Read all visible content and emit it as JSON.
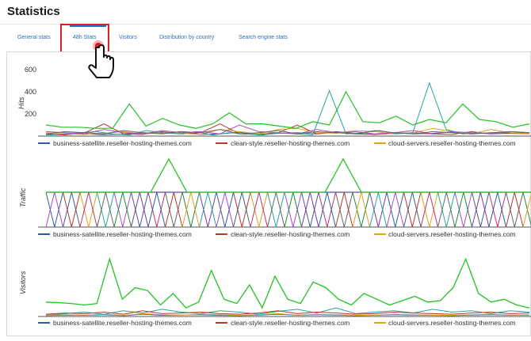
{
  "page": {
    "title": "Statistics"
  },
  "tabs": [
    {
      "label": "General stats",
      "active": false
    },
    {
      "label": "48h Stats",
      "active": true
    },
    {
      "label": "Visitors",
      "active": false
    },
    {
      "label": "Distribution by country",
      "active": false
    },
    {
      "label": "Search engine stats",
      "active": false
    }
  ],
  "legend": [
    {
      "name": "business-satellite.reseller-hosting-themes.com",
      "color": "#2f5f9e"
    },
    {
      "name": "clean-style.reseller-hosting-themes.com",
      "color": "#b53a2a"
    },
    {
      "name": "cloud-servers.reseller-hosting-themes.com",
      "color": "#e3a21a"
    }
  ],
  "icons": {
    "cursor": "hand-pointer-icon"
  },
  "chart_data": [
    {
      "type": "line",
      "ylabel": "Hits",
      "yticks": [
        "600",
        "400",
        "200"
      ],
      "ylim": [
        0,
        700
      ],
      "series": [
        {
          "name": "business-satellite.reseller-hosting-themes.com",
          "color": "#2f5f9e",
          "values": [
            10,
            15,
            20,
            12,
            18,
            30,
            25,
            40,
            15,
            20,
            35,
            10,
            25,
            30,
            20,
            40,
            25,
            15,
            30,
            20,
            25,
            35,
            20,
            30,
            25,
            20
          ]
        },
        {
          "name": "clean-style.reseller-hosting-themes.com",
          "color": "#b53a2a",
          "values": [
            20,
            10,
            30,
            110,
            20,
            15,
            40,
            20,
            30,
            110,
            20,
            15,
            30,
            100,
            20,
            35,
            20,
            15,
            25,
            30,
            20,
            15,
            40,
            20,
            25,
            30
          ]
        },
        {
          "name": "cloud-servers.reseller-hosting-themes.com",
          "color": "#e3a21a",
          "values": [
            30,
            20,
            15,
            25,
            40,
            20,
            30,
            25,
            15,
            60,
            40,
            20,
            60,
            70,
            30,
            25,
            50,
            40,
            20,
            30,
            70,
            40,
            20,
            60,
            30,
            20
          ]
        },
        {
          "color": "#22c322",
          "values": [
            100,
            80,
            80,
            70,
            70,
            290,
            90,
            160,
            100,
            70,
            110,
            210,
            110,
            110,
            90,
            70,
            130,
            100,
            400,
            130,
            120,
            180,
            100,
            150,
            120,
            290,
            150,
            130,
            80,
            110
          ]
        },
        {
          "color": "#2aa39b",
          "values": [
            10,
            20,
            30,
            40,
            20,
            10,
            50,
            30,
            20,
            40,
            10,
            30,
            20,
            10,
            30,
            20,
            10,
            410,
            20,
            30,
            50,
            20,
            30,
            480,
            60,
            20,
            30,
            20,
            40,
            30
          ]
        },
        {
          "color": "#b04ac0",
          "values": [
            40,
            30,
            20,
            60,
            30,
            20,
            50,
            30,
            40,
            20,
            100,
            40,
            30,
            20,
            60,
            30,
            40,
            20,
            30,
            50,
            20,
            40,
            30,
            20,
            40,
            30
          ]
        },
        {
          "color": "#666666",
          "values": [
            20,
            40,
            30,
            20,
            50,
            30,
            20,
            40,
            30,
            60,
            20,
            30,
            50,
            20,
            40,
            30,
            20,
            50,
            30,
            20,
            40,
            30,
            20,
            30,
            40,
            30
          ]
        }
      ]
    },
    {
      "type": "line",
      "ylabel": "Traffic",
      "series": [
        {
          "color": "#22c322",
          "values": [
            1,
            1,
            1,
            1,
            1,
            1,
            1,
            1,
            1,
            1,
            1,
            1,
            1,
            1,
            1,
            1,
            1,
            1,
            1,
            1,
            1,
            1,
            1,
            1,
            1,
            1,
            1,
            1,
            1,
            1,
            1,
            1,
            1,
            1,
            1,
            1,
            1,
            1,
            1,
            1,
            1,
            1,
            1,
            1,
            1,
            1,
            1,
            1
          ]
        },
        {
          "color": "#22c322",
          "peaks": [
            12,
            28
          ]
        }
      ]
    },
    {
      "type": "line",
      "ylabel": "Visitors",
      "series": [
        {
          "color": "#22c322",
          "values": [
            50,
            48,
            45,
            40,
            45,
            200,
            60,
            100,
            90,
            40,
            80,
            30,
            50,
            160,
            60,
            45,
            110,
            30,
            140,
            60,
            45,
            120,
            100,
            60,
            40,
            80,
            60,
            40,
            55,
            70,
            50,
            55,
            100,
            200,
            80,
            50,
            60,
            40,
            30
          ]
        },
        {
          "color": "#2aa39b",
          "values": [
            5,
            10,
            15,
            8,
            20,
            12,
            25,
            15,
            10,
            20,
            15,
            8,
            18,
            25,
            12,
            30,
            10,
            15,
            20,
            12,
            25,
            15,
            20,
            10,
            20,
            15
          ]
        },
        {
          "color": "#b53a2a",
          "values": [
            8,
            12,
            10,
            15,
            8,
            20,
            10,
            12,
            15,
            10,
            8,
            12,
            20,
            10,
            15,
            12,
            8,
            10,
            15,
            12,
            10,
            8,
            12,
            15,
            10,
            12
          ]
        },
        {
          "color": "#2f5f9e",
          "values": [
            3,
            5,
            4,
            6,
            3,
            8,
            4,
            5,
            6,
            4,
            3,
            5,
            8,
            4,
            6,
            5,
            3,
            4,
            6,
            5,
            4,
            3,
            5,
            6,
            4,
            5
          ]
        },
        {
          "color": "#e3a21a",
          "values": [
            4,
            6,
            5,
            8,
            4,
            10,
            6,
            5,
            8,
            6,
            4,
            6,
            10,
            5,
            8,
            6,
            4,
            5,
            8,
            6,
            5,
            4,
            6,
            8,
            5,
            6
          ]
        }
      ]
    }
  ]
}
